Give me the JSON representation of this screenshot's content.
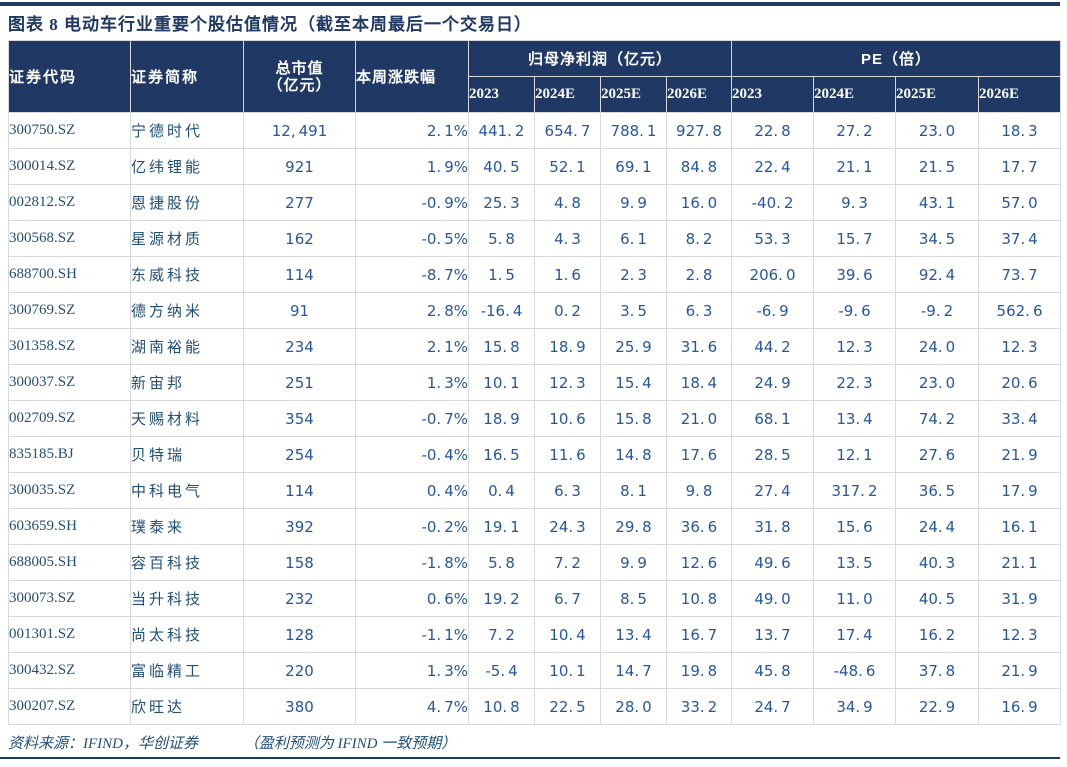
{
  "page": {
    "title": "图表 8  电动车行业重要个股估值情况（截至本周最后一个交易日）"
  },
  "colors": {
    "header_navy": "#1F3864",
    "grid_gray": "#D9D9D9",
    "text_blue": "#1F4E79",
    "number_blue": "#2457A0",
    "header_text": "#FFFFFF"
  },
  "table": {
    "headers": {
      "code": "证券代码",
      "name": "证券简称",
      "mktcap_line1": "总市值",
      "mktcap_line2": "（亿元）",
      "weekly_change": "本周涨跌幅",
      "np_group": "归母净利润（亿元）",
      "pe_group": "PE（倍）",
      "years": [
        "2023",
        "2024E",
        "2025E",
        "2026E"
      ]
    },
    "rows": [
      {
        "code": "300750.SZ",
        "name": "宁德时代",
        "mktcap": "12,491",
        "chg": "2.1%",
        "np": [
          "441.2",
          "654.7",
          "788.1",
          "927.8"
        ],
        "pe": [
          "22.8",
          "27.2",
          "23.0",
          "18.3"
        ]
      },
      {
        "code": "300014.SZ",
        "name": "亿纬锂能",
        "mktcap": "921",
        "chg": "1.9%",
        "np": [
          "40.5",
          "52.1",
          "69.1",
          "84.8"
        ],
        "pe": [
          "22.4",
          "21.1",
          "21.5",
          "17.7"
        ]
      },
      {
        "code": "002812.SZ",
        "name": "恩捷股份",
        "mktcap": "277",
        "chg": "-0.9%",
        "np": [
          "25.3",
          "4.8",
          "9.9",
          "16.0"
        ],
        "pe": [
          "-40.2",
          "9.3",
          "43.1",
          "57.0"
        ]
      },
      {
        "code": "300568.SZ",
        "name": "星源材质",
        "mktcap": "162",
        "chg": "-0.5%",
        "np": [
          "5.8",
          "4.3",
          "6.1",
          "8.2"
        ],
        "pe": [
          "53.3",
          "15.7",
          "34.5",
          "37.4"
        ]
      },
      {
        "code": "688700.SH",
        "name": "东威科技",
        "mktcap": "114",
        "chg": "-8.7%",
        "np": [
          "1.5",
          "1.6",
          "2.3",
          "2.8"
        ],
        "pe": [
          "206.0",
          "39.6",
          "92.4",
          "73.7"
        ]
      },
      {
        "code": "300769.SZ",
        "name": "德方纳米",
        "mktcap": "91",
        "chg": "2.8%",
        "np": [
          "-16.4",
          "0.2",
          "3.5",
          "6.3"
        ],
        "pe": [
          "-6.9",
          "-9.6",
          "-9.2",
          "562.6"
        ]
      },
      {
        "code": "301358.SZ",
        "name": "湖南裕能",
        "mktcap": "234",
        "chg": "2.1%",
        "np": [
          "15.8",
          "18.9",
          "25.9",
          "31.6"
        ],
        "pe": [
          "44.2",
          "12.3",
          "24.0",
          "12.3"
        ]
      },
      {
        "code": "300037.SZ",
        "name": "新宙邦",
        "mktcap": "251",
        "chg": "1.3%",
        "np": [
          "10.1",
          "12.3",
          "15.4",
          "18.4"
        ],
        "pe": [
          "24.9",
          "22.3",
          "23.0",
          "20.6"
        ]
      },
      {
        "code": "002709.SZ",
        "name": "天赐材料",
        "mktcap": "354",
        "chg": "-0.7%",
        "np": [
          "18.9",
          "10.6",
          "15.8",
          "21.0"
        ],
        "pe": [
          "68.1",
          "13.4",
          "74.2",
          "33.4"
        ]
      },
      {
        "code": "835185.BJ",
        "name": "贝特瑞",
        "mktcap": "254",
        "chg": "-0.4%",
        "np": [
          "16.5",
          "11.6",
          "14.8",
          "17.6"
        ],
        "pe": [
          "28.5",
          "12.1",
          "27.6",
          "21.9"
        ]
      },
      {
        "code": "300035.SZ",
        "name": "中科电气",
        "mktcap": "114",
        "chg": "0.4%",
        "np": [
          "0.4",
          "6.3",
          "8.1",
          "9.8"
        ],
        "pe": [
          "27.4",
          "317.2",
          "36.5",
          "17.9"
        ]
      },
      {
        "code": "603659.SH",
        "name": "璞泰来",
        "mktcap": "392",
        "chg": "-0.2%",
        "np": [
          "19.1",
          "24.3",
          "29.8",
          "36.6"
        ],
        "pe": [
          "31.8",
          "15.6",
          "24.4",
          "16.1"
        ]
      },
      {
        "code": "688005.SH",
        "name": "容百科技",
        "mktcap": "158",
        "chg": "-1.8%",
        "np": [
          "5.8",
          "7.2",
          "9.9",
          "12.6"
        ],
        "pe": [
          "49.6",
          "13.5",
          "40.3",
          "21.1"
        ]
      },
      {
        "code": "300073.SZ",
        "name": "当升科技",
        "mktcap": "232",
        "chg": "0.6%",
        "np": [
          "19.2",
          "6.7",
          "8.5",
          "10.8"
        ],
        "pe": [
          "49.0",
          "11.0",
          "40.5",
          "31.9"
        ]
      },
      {
        "code": "001301.SZ",
        "name": "尚太科技",
        "mktcap": "128",
        "chg": "-1.1%",
        "np": [
          "7.2",
          "10.4",
          "13.4",
          "16.7"
        ],
        "pe": [
          "13.7",
          "17.4",
          "16.2",
          "12.3"
        ]
      },
      {
        "code": "300432.SZ",
        "name": "富临精工",
        "mktcap": "220",
        "chg": "1.3%",
        "np": [
          "-5.4",
          "10.1",
          "14.7",
          "19.8"
        ],
        "pe": [
          "45.8",
          "-48.6",
          "37.8",
          "21.9"
        ]
      },
      {
        "code": "300207.SZ",
        "name": "欣旺达",
        "mktcap": "380",
        "chg": "4.7%",
        "np": [
          "10.8",
          "22.5",
          "28.0",
          "33.2"
        ],
        "pe": [
          "24.7",
          "34.9",
          "22.9",
          "16.9"
        ]
      }
    ]
  },
  "footer": {
    "source": "资料来源：IFIND，华创证券",
    "note": "（盈利预测为 IFIND 一致预期）"
  }
}
